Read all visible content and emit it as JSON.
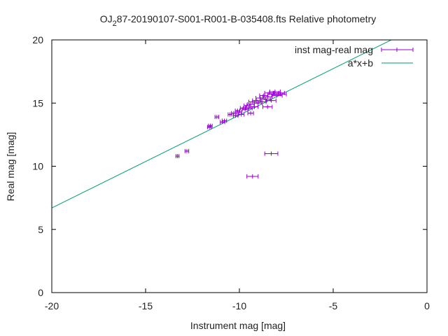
{
  "chart_data": {
    "type": "scatter",
    "title_prefix": "OJ",
    "title_sub": "2",
    "title_suffix": "87-20190107-S001-R001-B-035408.fts Relative photometry",
    "xlabel": "Instrument mag [mag]",
    "ylabel": "Real mag [mag]",
    "xlim": [
      -20,
      0
    ],
    "ylim": [
      0,
      20
    ],
    "xticks": [
      -20,
      -15,
      -10,
      -5,
      0
    ],
    "yticks": [
      0,
      5,
      10,
      15,
      20
    ],
    "legend_position": "top-right",
    "series": [
      {
        "name": "inst mag-real mag",
        "style": "points-with-x-errorbars",
        "color": "#9400d3",
        "points": [
          {
            "x": -13.3,
            "y": 10.8,
            "xerr": 0.08
          },
          {
            "x": -12.8,
            "y": 11.2,
            "xerr": 0.1
          },
          {
            "x": -11.6,
            "y": 13.1,
            "xerr": 0.1
          },
          {
            "x": -11.55,
            "y": 13.2,
            "xerr": 0.1
          },
          {
            "x": -11.2,
            "y": 13.9,
            "xerr": 0.1
          },
          {
            "x": -10.9,
            "y": 13.5,
            "xerr": 0.12
          },
          {
            "x": -10.8,
            "y": 13.6,
            "xerr": 0.12
          },
          {
            "x": -10.5,
            "y": 14.1,
            "xerr": 0.1
          },
          {
            "x": -10.3,
            "y": 14.2,
            "xerr": 0.12
          },
          {
            "x": -10.2,
            "y": 14.0,
            "xerr": 0.12
          },
          {
            "x": -10.1,
            "y": 14.4,
            "xerr": 0.12
          },
          {
            "x": -10.0,
            "y": 14.3,
            "xerr": 0.12
          },
          {
            "x": -9.9,
            "y": 14.1,
            "xerr": 0.15
          },
          {
            "x": -9.8,
            "y": 14.6,
            "xerr": 0.15
          },
          {
            "x": -9.7,
            "y": 14.5,
            "xerr": 0.15
          },
          {
            "x": -9.6,
            "y": 14.8,
            "xerr": 0.15
          },
          {
            "x": -9.5,
            "y": 14.6,
            "xerr": 0.18
          },
          {
            "x": -9.4,
            "y": 14.9,
            "xerr": 0.18
          },
          {
            "x": -9.4,
            "y": 14.2,
            "xerr": 0.15
          },
          {
            "x": -9.3,
            "y": 15.1,
            "xerr": 0.2
          },
          {
            "x": -9.2,
            "y": 14.7,
            "xerr": 0.2
          },
          {
            "x": -9.1,
            "y": 15.2,
            "xerr": 0.2
          },
          {
            "x": -9.0,
            "y": 15.0,
            "xerr": 0.2
          },
          {
            "x": -8.9,
            "y": 15.4,
            "xerr": 0.22
          },
          {
            "x": -8.8,
            "y": 15.1,
            "xerr": 0.22
          },
          {
            "x": -8.7,
            "y": 15.6,
            "xerr": 0.22
          },
          {
            "x": -8.6,
            "y": 15.3,
            "xerr": 0.25
          },
          {
            "x": -8.5,
            "y": 15.5,
            "xerr": 0.25
          },
          {
            "x": -8.5,
            "y": 14.7,
            "xerr": 0.25
          },
          {
            "x": -8.4,
            "y": 15.8,
            "xerr": 0.25
          },
          {
            "x": -8.3,
            "y": 15.2,
            "xerr": 0.25
          },
          {
            "x": -8.2,
            "y": 15.7,
            "xerr": 0.28
          },
          {
            "x": -8.1,
            "y": 15.9,
            "xerr": 0.28
          },
          {
            "x": -8.0,
            "y": 15.6,
            "xerr": 0.28
          },
          {
            "x": -7.9,
            "y": 15.8,
            "xerr": 0.3
          },
          {
            "x": -7.8,
            "y": 15.7,
            "xerr": 0.3
          },
          {
            "x": -9.3,
            "y": 9.2,
            "xerr": 0.3
          },
          {
            "x": -8.3,
            "y": 11.0,
            "xerr": 0.35
          }
        ]
      },
      {
        "name": "a*x+b",
        "style": "line",
        "color": "#009e73",
        "a": 0.735,
        "b": 21.4
      }
    ]
  }
}
